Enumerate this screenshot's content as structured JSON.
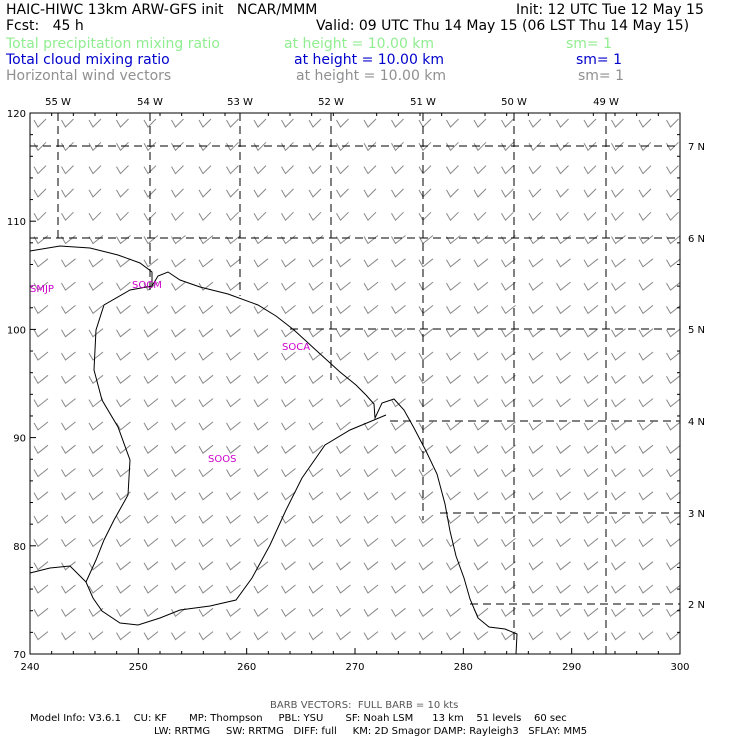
{
  "header": {
    "title": "HAIC-HIWC 13km ARW-GFS init   NCAR/MMM",
    "init": "Init: 12 UTC Tue 12 May 15",
    "fcst": "Fcst:   45 h",
    "valid": "Valid: 09 UTC Thu 14 May 15 (06 LST Thu 14 May 15)",
    "fields": [
      {
        "name": "Total precipitation mixing ratio",
        "height": "at height = 10.00 km",
        "sm": "sm= 1",
        "color": "#90ee90"
      },
      {
        "name": "Total cloud mixing ratio",
        "height": "at height = 10.00 km",
        "sm": "sm= 1",
        "color": "#0000cd"
      },
      {
        "name": "Horizontal wind vectors",
        "height": "at height = 10.00 km",
        "sm": "sm= 1",
        "color": "#909090"
      }
    ]
  },
  "map": {
    "x_ticks": [
      "240",
      "250",
      "260",
      "270",
      "280",
      "290",
      "300"
    ],
    "y_ticks": [
      "70",
      "80",
      "90",
      "100",
      "110",
      "120"
    ],
    "lon_labels": [
      "55 W",
      "54 W",
      "53 W",
      "52 W",
      "51 W",
      "50 W",
      "49 W"
    ],
    "lat_labels": [
      "7 N",
      "6 N",
      "5 N",
      "4 N",
      "3 N",
      "2 N"
    ],
    "stations": [
      "SMJP",
      "SOCM",
      "SOCA",
      "SOOS"
    ],
    "station_color": "#cc00cc",
    "barb_color": "#888888"
  },
  "footer": {
    "barb_note": "BARB VECTORS:  FULL BARB = 10 kts",
    "line1": "Model Info: V3.6.1    CU: KF       MP: Thompson     PBL: YSU       SF: Noah LSM      13 km    51 levels    60 sec",
    "line2": "LW: RRTMG     SW: RRTMG   DIFF: full     KM: 2D Smagor DAMP: Rayleigh3   SFLAY: MM5"
  }
}
